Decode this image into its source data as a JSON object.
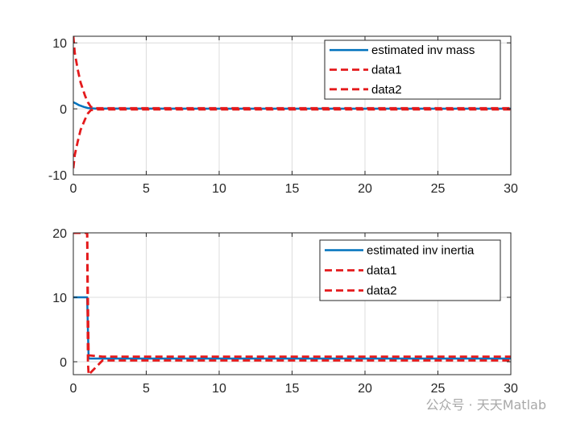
{
  "watermark": "公众号 · 天天Matlab",
  "chart_data": [
    {
      "type": "line",
      "xlim": [
        0,
        30
      ],
      "ylim": [
        -10,
        11
      ],
      "xticks": [
        0,
        5,
        10,
        15,
        20,
        25,
        30
      ],
      "yticks": [
        -10,
        0,
        10
      ],
      "grid": true,
      "legend_position": "top-right",
      "series": [
        {
          "name": "estimated inv mass",
          "style": "solid",
          "color": "#0072BD",
          "x": [
            0,
            0.15,
            0.4,
            0.7,
            1.0,
            1.5,
            2,
            3,
            30
          ],
          "y": [
            1.0,
            0.85,
            0.55,
            0.3,
            0.12,
            0.05,
            0.03,
            0.03,
            0.02
          ]
        },
        {
          "name": "data1",
          "style": "dashed",
          "color": "#E41A1C",
          "x": [
            0,
            0.1,
            0.3,
            0.5,
            0.8,
            1.0,
            1.2,
            1.5,
            2,
            3,
            30
          ],
          "y": [
            11.0,
            8.5,
            6.0,
            4.0,
            2.0,
            1.0,
            0.3,
            0.1,
            0.1,
            0.1,
            0.1
          ]
        },
        {
          "name": "data2",
          "style": "dashed",
          "color": "#E41A1C",
          "x": [
            0,
            0.1,
            0.3,
            0.5,
            0.8,
            1.0,
            1.2,
            1.5,
            2,
            3,
            30
          ],
          "y": [
            -9.0,
            -7.0,
            -5.0,
            -3.2,
            -1.6,
            -0.7,
            -0.2,
            -0.1,
            -0.1,
            -0.1,
            -0.1
          ]
        }
      ]
    },
    {
      "type": "line",
      "xlim": [
        0,
        30
      ],
      "ylim": [
        -2,
        20
      ],
      "xticks": [
        0,
        5,
        10,
        15,
        20,
        25,
        30
      ],
      "yticks": [
        0,
        10,
        20
      ],
      "grid": true,
      "legend_position": "top-right",
      "series": [
        {
          "name": "estimated inv inertia",
          "style": "solid",
          "color": "#0072BD",
          "x": [
            0,
            0.95,
            1.0,
            1.05,
            2,
            30
          ],
          "y": [
            10,
            10,
            5,
            0.5,
            0.5,
            0.5
          ]
        },
        {
          "name": "data1",
          "style": "dashed",
          "color": "#E41A1C",
          "x": [
            0,
            0.95,
            1.0,
            1.05,
            2,
            30
          ],
          "y": [
            20,
            20,
            10,
            1.0,
            0.8,
            0.8
          ]
        },
        {
          "name": "data2",
          "style": "dashed",
          "color": "#E41A1C",
          "x": [
            0,
            0.95,
            1.0,
            1.05,
            2,
            30
          ],
          "y": [
            20,
            20,
            0,
            -2,
            0.2,
            0.2
          ]
        }
      ]
    }
  ]
}
